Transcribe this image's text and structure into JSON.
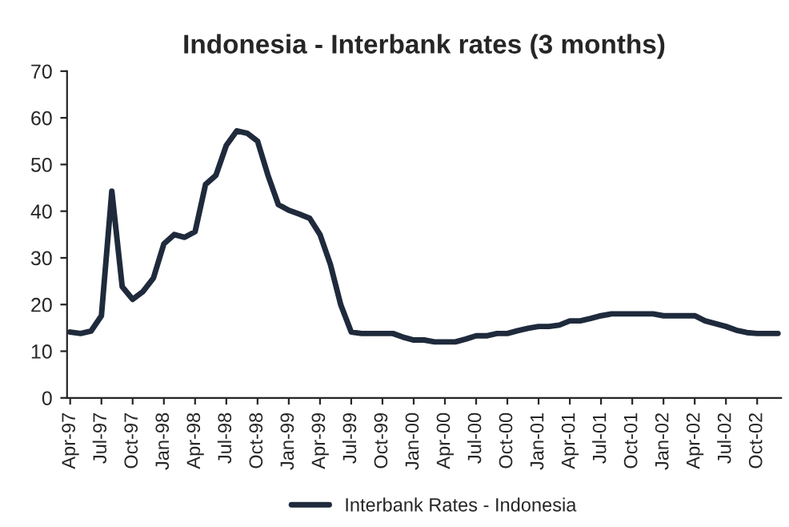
{
  "chart_data": {
    "type": "line",
    "title": "Indonesia - Interbank rates (3 months)",
    "categories": [
      "Apr-97",
      null,
      null,
      "Jul-97",
      null,
      null,
      "Oct-97",
      null,
      null,
      "Jan-98",
      null,
      null,
      "Apr-98",
      null,
      null,
      "Jul-98",
      null,
      null,
      "Oct-98",
      null,
      null,
      "Jan-99",
      null,
      null,
      "Apr-99",
      null,
      null,
      "Jul-99",
      null,
      null,
      "Oct-99",
      null,
      null,
      "Jan-00",
      null,
      null,
      "Apr-00",
      null,
      null,
      "Jul-00",
      null,
      null,
      "Oct-00",
      null,
      null,
      "Jan-01",
      null,
      null,
      "Apr-01",
      null,
      null,
      "Jul-01",
      null,
      null,
      "Oct-01",
      null,
      null,
      "Jan-02",
      null,
      null,
      "Apr-02",
      null,
      null,
      "Jul-02",
      null,
      null,
      "Oct-02",
      null,
      null
    ],
    "series": [
      {
        "name": "Interbank Rates - Indonesia",
        "color": "#1f2a3c",
        "values": [
          14.1,
          13.8,
          14.3,
          17.6,
          44.3,
          23.8,
          21.1,
          22.8,
          25.7,
          33,
          35,
          34.4,
          35.6,
          45.7,
          47.7,
          54.1,
          57.2,
          56.7,
          55,
          47.7,
          41.4,
          40.2,
          39.4,
          38.5,
          35,
          28.6,
          19.9,
          14.1,
          13.8,
          13.8,
          13.8,
          13.8,
          13,
          12.4,
          12.4,
          12,
          12,
          12,
          12.6,
          13.3,
          13.3,
          13.8,
          13.8,
          14.4,
          14.9,
          15.3,
          15.3,
          15.6,
          16.5,
          16.5,
          17,
          17.6,
          18,
          18,
          18,
          18,
          18,
          17.6,
          17.6,
          17.6,
          17.6,
          16.5,
          15.9,
          15.3,
          14.5,
          14,
          13.8,
          13.8,
          13.8
        ]
      }
    ],
    "ylim": [
      0,
      70
    ],
    "yticks": [
      0,
      10,
      20,
      30,
      40,
      50,
      60,
      70
    ],
    "grid": false,
    "legend": "bottom",
    "marker": "none",
    "line_style": "solid"
  }
}
